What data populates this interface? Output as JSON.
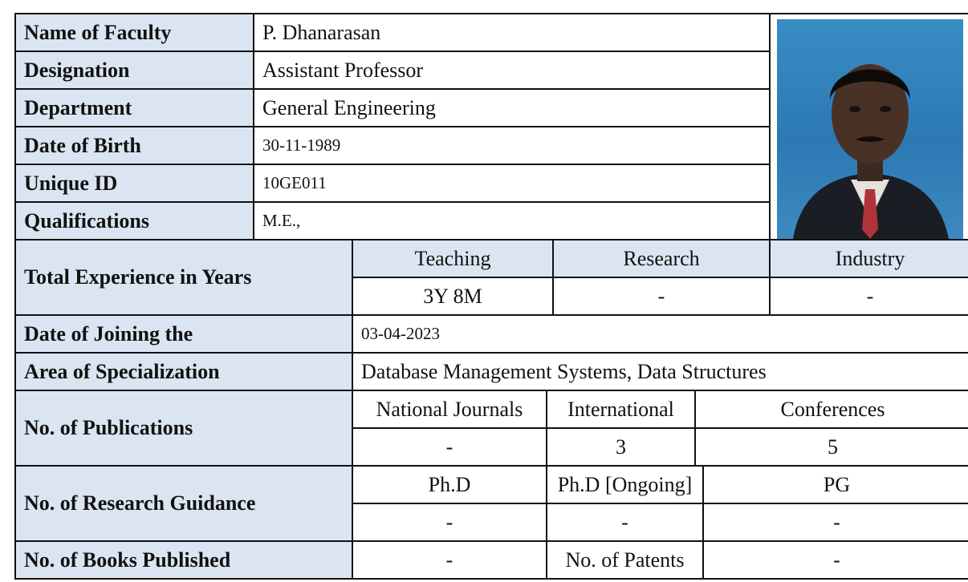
{
  "profile": {
    "rows": [
      {
        "label": "Name of Faculty",
        "value": "P. Dhanarasan"
      },
      {
        "label": "Designation",
        "value": "Assistant Professor"
      },
      {
        "label": "Department",
        "value": "General Engineering"
      },
      {
        "label": "Date of Birth",
        "value": "30-11-1989"
      },
      {
        "label": "Unique ID",
        "value": "10GE011"
      },
      {
        "label": "Qualifications",
        "value": "M.E.,"
      }
    ]
  },
  "experience": {
    "label": "Total Experience in Years",
    "headers": [
      "Teaching",
      "Research",
      "Industry"
    ],
    "values": [
      "3Y 8M",
      "-",
      "-"
    ]
  },
  "joining": {
    "label": "Date of Joining the",
    "value": "03-04-2023"
  },
  "specialization": {
    "label": "Area of Specialization",
    "value": "Database Management Systems, Data Structures"
  },
  "publications": {
    "label": "No. of  Publications",
    "headers": [
      "National Journals",
      "International",
      "Conferences"
    ],
    "values": [
      "-",
      "3",
      "5"
    ]
  },
  "guidance": {
    "label": "No. of Research Guidance",
    "headers": [
      "Ph.D",
      "Ph.D [Ongoing]",
      "PG"
    ],
    "values": [
      "-",
      "-",
      "-"
    ]
  },
  "books": {
    "label": "No. of Books Published",
    "value": "-",
    "patents_label": "No. of Patents",
    "patents_value": "-"
  }
}
